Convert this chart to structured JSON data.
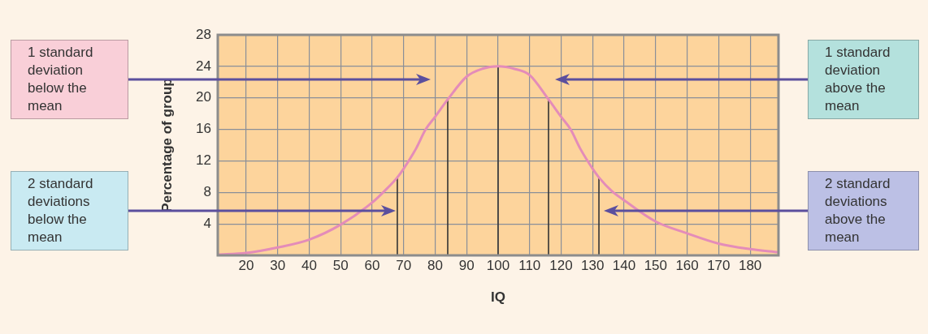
{
  "chart_data": {
    "type": "line",
    "xlabel": "IQ",
    "ylabel": "Percentage of group",
    "xlim": [
      11,
      189
    ],
    "xticks": [
      20,
      30,
      40,
      50,
      60,
      70,
      80,
      90,
      100,
      110,
      120,
      130,
      140,
      150,
      160,
      170,
      180
    ],
    "ylim": [
      0,
      28
    ],
    "yticks": [
      4,
      8,
      12,
      16,
      20,
      24,
      28
    ],
    "grid": true,
    "legend": false,
    "marker": "none",
    "series": [
      {
        "color": "#e48cb9",
        "x": [
          11,
          20,
          30,
          40,
          50,
          60,
          64,
          68,
          70,
          74,
          77,
          80,
          84,
          90,
          95,
          100,
          105,
          110,
          116,
          120,
          123,
          126,
          130,
          132,
          136,
          140,
          150,
          160,
          170,
          180,
          189
        ],
        "values": [
          0.1,
          0.3,
          1.0,
          2.0,
          3.9,
          6.7,
          8.2,
          9.9,
          11.0,
          13.6,
          16.0,
          17.6,
          19.8,
          22.7,
          23.7,
          24,
          23.7,
          22.9,
          19.8,
          17.6,
          16.0,
          13.6,
          11.0,
          9.9,
          8.2,
          7.0,
          4.3,
          2.8,
          1.5,
          0.8,
          0.4
        ]
      },
      {
        "color": "#333333",
        "x": [
          68,
          68
        ],
        "values": [
          0,
          10
        ]
      },
      {
        "color": "#333333",
        "x": [
          84,
          84
        ],
        "values": [
          0,
          19.8
        ]
      },
      {
        "color": "#333333",
        "x": [
          100,
          100
        ],
        "values": [
          0,
          24
        ]
      },
      {
        "color": "#333333",
        "x": [
          116,
          116
        ],
        "values": [
          0,
          19.8
        ]
      },
      {
        "color": "#333333",
        "x": [
          132,
          132
        ],
        "values": [
          0,
          9.9
        ]
      }
    ],
    "annotations": [
      "1 standard deviation below the mean",
      "2 standard deviations below the mean",
      "1 standard deviation above the mean",
      "2 standard deviations above the mean"
    ]
  }
}
